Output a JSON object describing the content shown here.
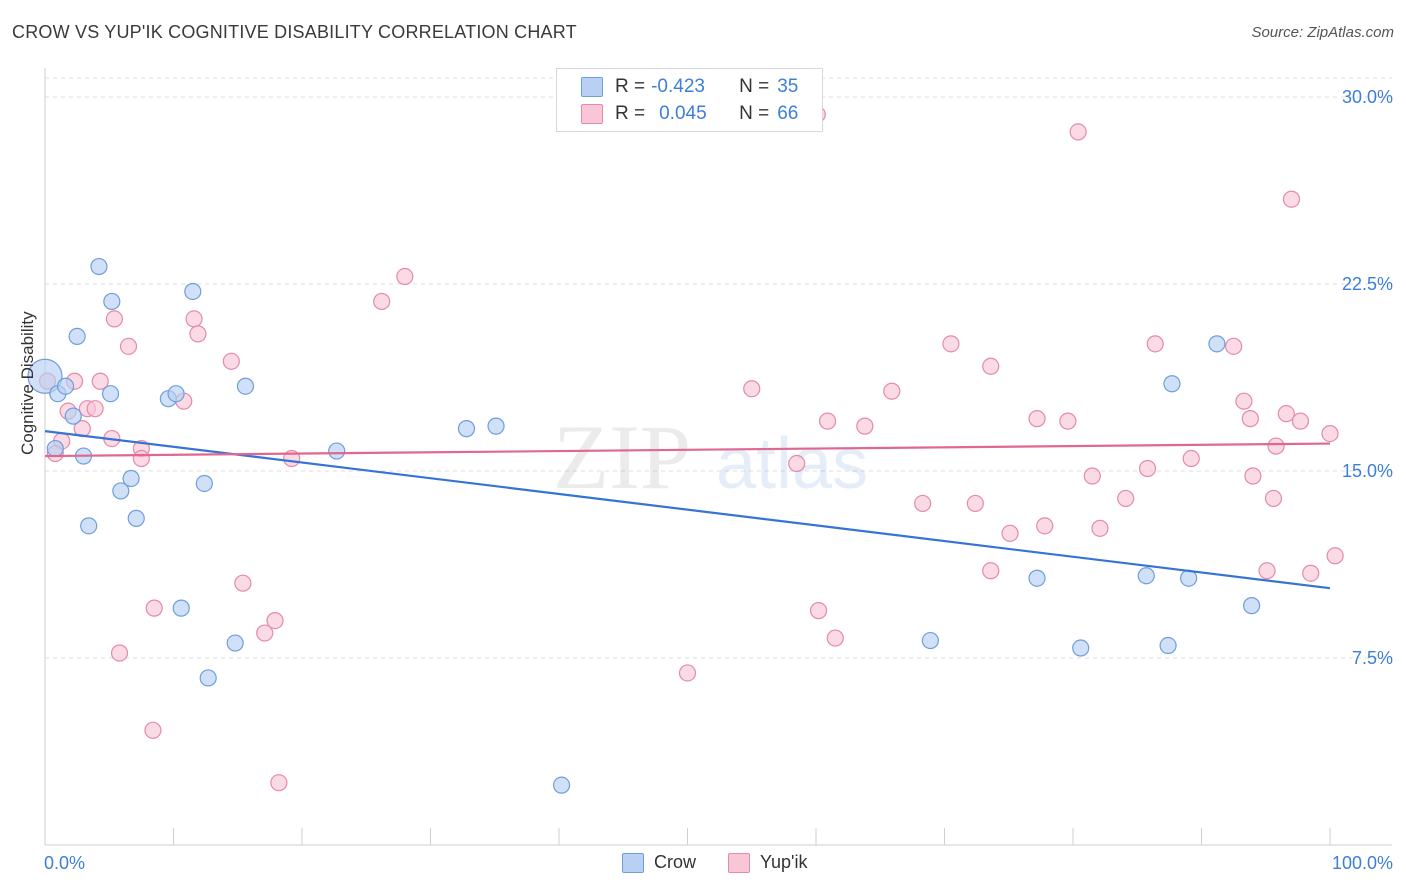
{
  "header": {
    "title": "CROW VS YUP'IK COGNITIVE DISABILITY CORRELATION CHART",
    "source": "Source: ZipAtlas.com"
  },
  "legend": {
    "rows": [
      {
        "r_label": "R =",
        "r_value": "-0.423",
        "n_label": "N =",
        "n_value": "35"
      },
      {
        "r_label": "R =",
        "r_value": "0.045",
        "n_label": "N =",
        "n_value": "66"
      }
    ]
  },
  "watermark": {
    "zip": "ZIP",
    "atlas": "atlas"
  },
  "colors": {
    "crow_fill": "#b7d0f3",
    "crow_stroke": "#6f9edc",
    "crow_line": "#3574d4",
    "yupik_fill": "#f8c6d6",
    "yupik_stroke": "#e58aaa",
    "yupik_line": "#e0678f",
    "tick_label": "#3d7fd6"
  },
  "chart_data": {
    "type": "scatter",
    "title": "CROW VS YUP'IK COGNITIVE DISABILITY CORRELATION CHART",
    "xlabel": "",
    "ylabel": "Cognitive Disability",
    "xlim": [
      0,
      100
    ],
    "ylim": [
      0,
      30
    ],
    "x_tick_labels": [
      "0.0%",
      "100.0%"
    ],
    "y_ticks": [
      7.5,
      15.0,
      22.5,
      30.0
    ],
    "y_tick_labels": [
      "7.5%",
      "15.0%",
      "22.5%",
      "30.0%"
    ],
    "grid": "horizontal dashed",
    "legend_position": "top-center and bottom",
    "series": [
      {
        "name": "Crow",
        "r": -0.423,
        "n": 35,
        "trend": {
          "x": [
            0,
            100
          ],
          "y": [
            16.6,
            10.3
          ]
        },
        "points": [
          [
            0.0,
            18.8
          ],
          [
            1.0,
            18.1
          ],
          [
            2.5,
            20.4
          ],
          [
            4.2,
            23.2
          ],
          [
            5.2,
            21.8
          ],
          [
            1.6,
            18.4
          ],
          [
            5.1,
            18.1
          ],
          [
            2.2,
            17.2
          ],
          [
            0.8,
            15.9
          ],
          [
            3.0,
            15.6
          ],
          [
            3.4,
            12.8
          ],
          [
            5.9,
            14.2
          ],
          [
            6.7,
            14.7
          ],
          [
            7.1,
            13.1
          ],
          [
            9.6,
            17.9
          ],
          [
            10.2,
            18.1
          ],
          [
            11.5,
            22.2
          ],
          [
            12.4,
            14.5
          ],
          [
            15.6,
            18.4
          ],
          [
            22.7,
            15.8
          ],
          [
            10.6,
            9.5
          ],
          [
            14.8,
            8.1
          ],
          [
            12.7,
            6.7
          ],
          [
            32.8,
            16.7
          ],
          [
            35.1,
            16.8
          ],
          [
            40.2,
            2.4
          ],
          [
            68.9,
            8.2
          ],
          [
            77.2,
            10.7
          ],
          [
            80.6,
            7.9
          ],
          [
            85.7,
            10.8
          ],
          [
            87.4,
            8.0
          ],
          [
            89.0,
            10.7
          ],
          [
            87.7,
            18.5
          ],
          [
            91.2,
            20.1
          ],
          [
            93.9,
            9.6
          ]
        ]
      },
      {
        "name": "Yup'ik",
        "r": 0.045,
        "n": 66,
        "trend": {
          "x": [
            0,
            100
          ],
          "y": [
            15.6,
            16.1
          ]
        },
        "points": [
          [
            0.2,
            18.6
          ],
          [
            1.3,
            16.2
          ],
          [
            1.8,
            17.4
          ],
          [
            2.3,
            18.6
          ],
          [
            2.9,
            16.7
          ],
          [
            3.3,
            17.5
          ],
          [
            3.9,
            17.5
          ],
          [
            4.3,
            18.6
          ],
          [
            5.2,
            16.3
          ],
          [
            5.4,
            21.1
          ],
          [
            6.5,
            20.0
          ],
          [
            7.5,
            15.9
          ],
          [
            7.5,
            15.5
          ],
          [
            0.8,
            15.7
          ],
          [
            11.6,
            21.1
          ],
          [
            11.9,
            20.5
          ],
          [
            10.8,
            17.8
          ],
          [
            14.5,
            19.4
          ],
          [
            15.4,
            10.5
          ],
          [
            17.1,
            8.5
          ],
          [
            17.9,
            9.0
          ],
          [
            19.2,
            15.5
          ],
          [
            8.5,
            9.5
          ],
          [
            5.8,
            7.7
          ],
          [
            8.4,
            4.6
          ],
          [
            18.2,
            2.5
          ],
          [
            26.2,
            21.8
          ],
          [
            28.0,
            22.8
          ],
          [
            50.0,
            6.9
          ],
          [
            55.0,
            18.3
          ],
          [
            58.5,
            15.3
          ],
          [
            60.1,
            29.3
          ],
          [
            60.2,
            9.4
          ],
          [
            60.9,
            17.0
          ],
          [
            61.5,
            8.3
          ],
          [
            63.8,
            16.8
          ],
          [
            65.9,
            18.2
          ],
          [
            68.3,
            13.7
          ],
          [
            70.5,
            20.1
          ],
          [
            72.4,
            13.7
          ],
          [
            73.6,
            19.2
          ],
          [
            73.6,
            11.0
          ],
          [
            75.1,
            12.5
          ],
          [
            77.8,
            12.8
          ],
          [
            77.2,
            17.1
          ],
          [
            79.6,
            17.0
          ],
          [
            80.4,
            28.6
          ],
          [
            81.5,
            14.8
          ],
          [
            82.1,
            12.7
          ],
          [
            84.1,
            13.9
          ],
          [
            85.8,
            15.1
          ],
          [
            86.4,
            20.1
          ],
          [
            89.2,
            15.5
          ],
          [
            92.5,
            20.0
          ],
          [
            93.3,
            17.8
          ],
          [
            93.8,
            17.1
          ],
          [
            94.0,
            14.8
          ],
          [
            95.1,
            11.0
          ],
          [
            95.6,
            13.9
          ],
          [
            95.8,
            16.0
          ],
          [
            96.6,
            17.3
          ],
          [
            97.0,
            25.9
          ],
          [
            97.7,
            17.0
          ],
          [
            98.5,
            10.9
          ],
          [
            100.0,
            16.5
          ],
          [
            100.4,
            11.6
          ]
        ]
      }
    ]
  }
}
